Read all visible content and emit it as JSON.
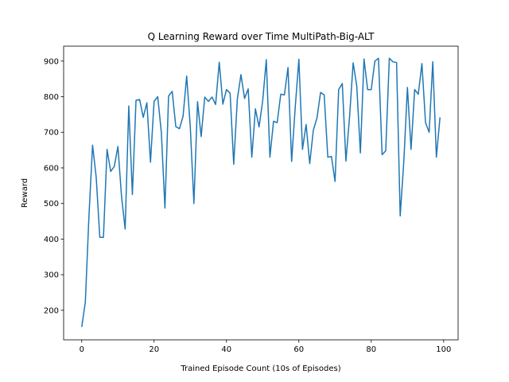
{
  "chart_data": {
    "type": "line",
    "title": "Q Learning Reward over Time MultiPath-Big-ALT",
    "xlabel": "Trained Episode Count (10s of Episodes)",
    "ylabel": "Reward",
    "xlim": [
      -5,
      104
    ],
    "ylim": [
      117,
      942
    ],
    "xticks": [
      0,
      20,
      40,
      60,
      80,
      100
    ],
    "yticks": [
      200,
      300,
      400,
      500,
      600,
      700,
      800,
      900
    ],
    "grid": false,
    "series": [
      {
        "color": "#1f77b4",
        "x": [
          0,
          1,
          2,
          3,
          4,
          5,
          6,
          7,
          8,
          9,
          10,
          11,
          12,
          13,
          14,
          15,
          16,
          17,
          18,
          19,
          20,
          21,
          22,
          23,
          24,
          25,
          26,
          27,
          28,
          29,
          30,
          31,
          32,
          33,
          34,
          35,
          36,
          37,
          38,
          39,
          40,
          41,
          42,
          43,
          44,
          45,
          46,
          47,
          48,
          49,
          50,
          51,
          52,
          53,
          54,
          55,
          56,
          57,
          58,
          59,
          60,
          61,
          62,
          63,
          64,
          65,
          66,
          67,
          68,
          69,
          70,
          71,
          72,
          73,
          74,
          75,
          76,
          77,
          78,
          79,
          80,
          81,
          82,
          83,
          84,
          85,
          86,
          87,
          88,
          89,
          90,
          91,
          92,
          93,
          94,
          95,
          96,
          97,
          98,
          99
        ],
        "y": [
          153,
          223,
          465,
          664,
          574,
          405,
          405,
          652,
          590,
          604,
          660,
          520,
          428,
          774,
          525,
          790,
          792,
          742,
          783,
          616,
          787,
          800,
          700,
          487,
          802,
          815,
          716,
          710,
          745,
          858,
          715,
          500,
          786,
          688,
          799,
          787,
          799,
          778,
          897,
          779,
          820,
          810,
          610,
          793,
          862,
          795,
          822,
          630,
          766,
          715,
          788,
          904,
          630,
          731,
          727,
          807,
          805,
          882,
          618,
          771,
          905,
          652,
          722,
          612,
          706,
          740,
          812,
          805,
          630,
          632,
          562,
          820,
          837,
          619,
          742,
          895,
          830,
          642,
          906,
          820,
          820,
          900,
          908,
          637,
          648,
          908,
          898,
          896,
          465,
          618,
          826,
          652,
          820,
          807,
          893,
          727,
          700,
          898,
          630,
          742
        ]
      }
    ]
  }
}
